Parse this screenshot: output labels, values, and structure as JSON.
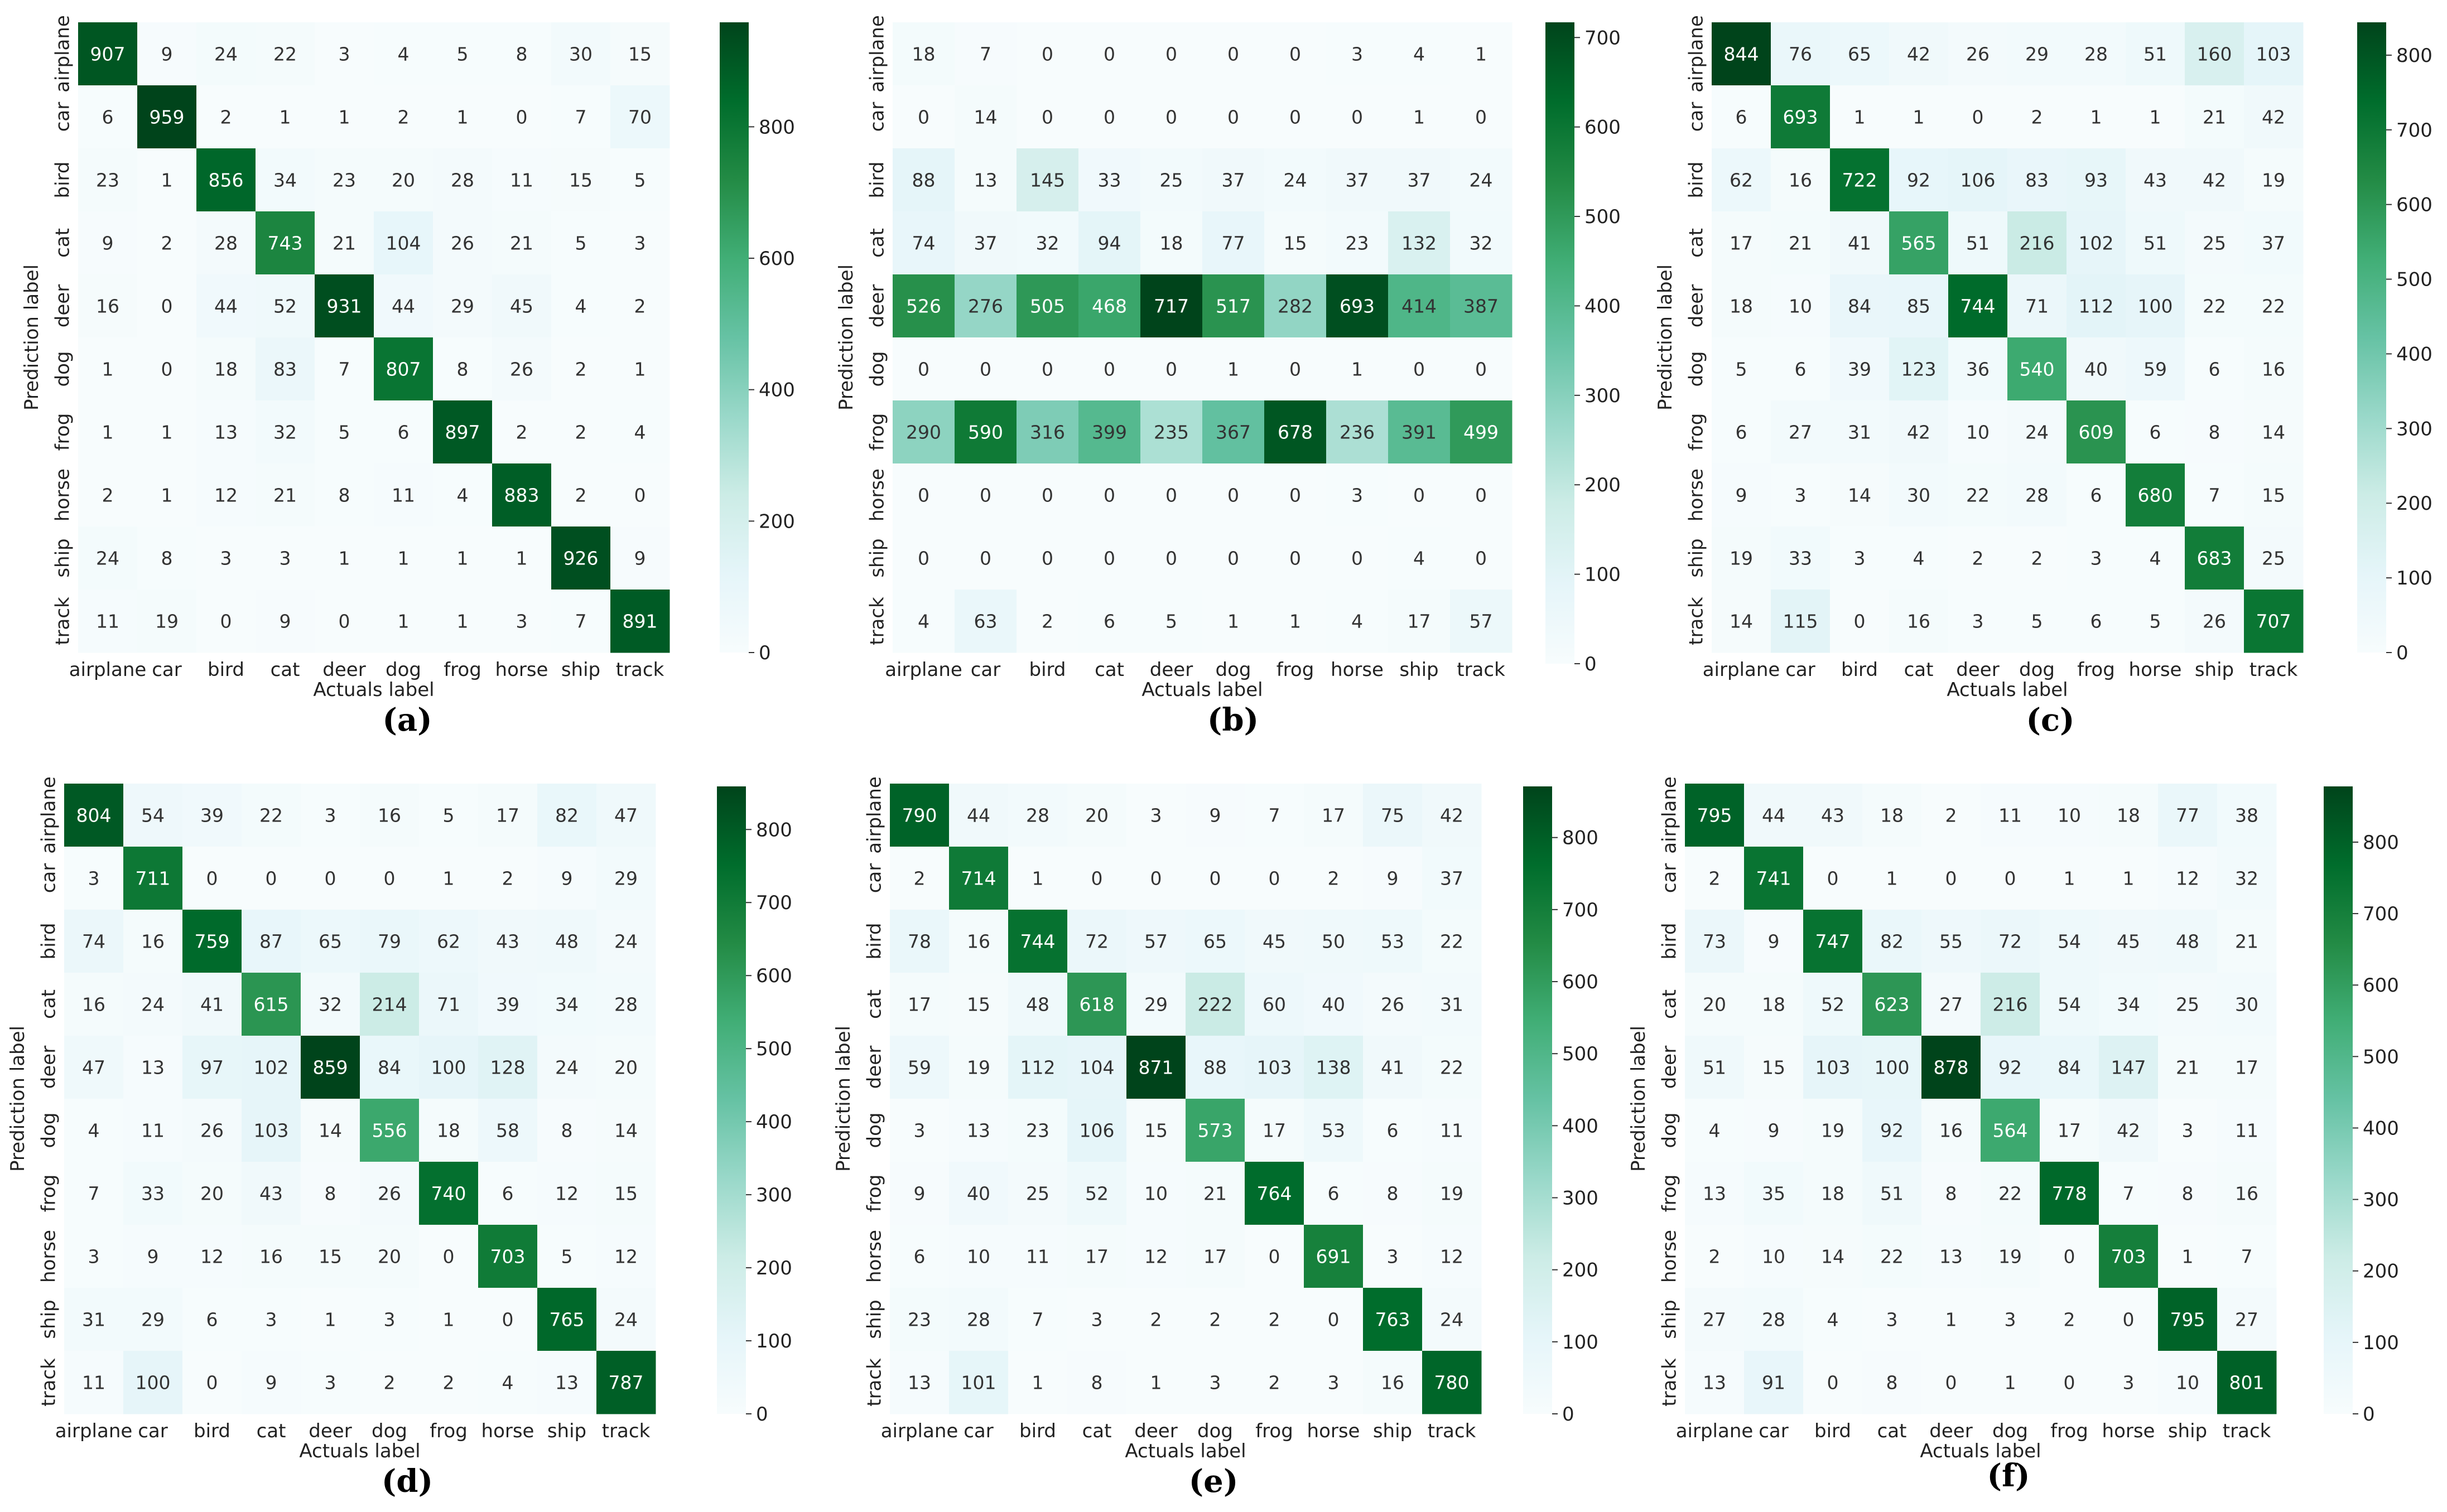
{
  "colormap": {
    "low": "#f7fcfd",
    "mid": "#66c2a4",
    "high": "#00441b",
    "stops": [
      "#f7fcfd",
      "#e5f5f9",
      "#ccece6",
      "#99d8c9",
      "#66c2a4",
      "#41ae76",
      "#238b45",
      "#006d2c",
      "#00441b"
    ]
  },
  "chart_data": [
    {
      "type": "heatmap",
      "panel_label": "(a)",
      "xlabel": "Actuals label",
      "ylabel": "Prediction label",
      "x_categories": [
        "airplane",
        "car",
        "bird",
        "cat",
        "deer",
        "dog",
        "frog",
        "horse",
        "ship",
        "track"
      ],
      "y_categories": [
        "airplane",
        "car",
        "bird",
        "cat",
        "deer",
        "dog",
        "frog",
        "horse",
        "ship",
        "track"
      ],
      "values": [
        [
          907,
          9,
          24,
          22,
          3,
          4,
          5,
          8,
          30,
          15
        ],
        [
          6,
          959,
          2,
          1,
          1,
          2,
          1,
          0,
          7,
          70
        ],
        [
          23,
          1,
          856,
          34,
          23,
          20,
          28,
          11,
          15,
          5
        ],
        [
          9,
          2,
          28,
          743,
          21,
          104,
          26,
          21,
          5,
          3
        ],
        [
          16,
          0,
          44,
          52,
          931,
          44,
          29,
          45,
          4,
          2
        ],
        [
          1,
          0,
          18,
          83,
          7,
          807,
          8,
          26,
          2,
          1
        ],
        [
          1,
          1,
          13,
          32,
          5,
          6,
          897,
          2,
          2,
          4
        ],
        [
          2,
          1,
          12,
          21,
          8,
          11,
          4,
          883,
          2,
          0
        ],
        [
          24,
          8,
          3,
          3,
          1,
          1,
          1,
          1,
          926,
          9
        ],
        [
          11,
          19,
          0,
          9,
          0,
          1,
          1,
          3,
          7,
          891
        ]
      ],
      "colorbar": {
        "ticks": [
          0,
          200,
          400,
          600,
          800
        ],
        "vmin": 0,
        "vmax": 959
      }
    },
    {
      "type": "heatmap",
      "panel_label": "(b)",
      "xlabel": "Actuals label",
      "ylabel": "Prediction label",
      "x_categories": [
        "airplane",
        "car",
        "bird",
        "cat",
        "deer",
        "dog",
        "frog",
        "horse",
        "ship",
        "track"
      ],
      "y_categories": [
        "airplane",
        "car",
        "bird",
        "cat",
        "deer",
        "dog",
        "frog",
        "horse",
        "ship",
        "track"
      ],
      "values": [
        [
          18,
          7,
          0,
          0,
          0,
          0,
          0,
          3,
          4,
          1
        ],
        [
          0,
          14,
          0,
          0,
          0,
          0,
          0,
          0,
          1,
          0
        ],
        [
          88,
          13,
          145,
          33,
          25,
          37,
          24,
          37,
          37,
          24
        ],
        [
          74,
          37,
          32,
          94,
          18,
          77,
          15,
          23,
          132,
          32
        ],
        [
          526,
          276,
          505,
          468,
          717,
          517,
          282,
          693,
          414,
          387
        ],
        [
          0,
          0,
          0,
          0,
          0,
          1,
          0,
          1,
          0,
          0
        ],
        [
          290,
          590,
          316,
          399,
          235,
          367,
          678,
          236,
          391,
          499
        ],
        [
          0,
          0,
          0,
          0,
          0,
          0,
          0,
          3,
          0,
          0
        ],
        [
          0,
          0,
          0,
          0,
          0,
          0,
          0,
          0,
          4,
          0
        ],
        [
          4,
          63,
          2,
          6,
          5,
          1,
          1,
          4,
          17,
          57
        ]
      ],
      "colorbar": {
        "ticks": [
          0,
          100,
          200,
          300,
          400,
          500,
          600,
          700
        ],
        "vmin": 0,
        "vmax": 717
      }
    },
    {
      "type": "heatmap",
      "panel_label": "(c)",
      "xlabel": "Actuals label",
      "ylabel": "Prediction label",
      "x_categories": [
        "airplane",
        "car",
        "bird",
        "cat",
        "deer",
        "dog",
        "frog",
        "horse",
        "ship",
        "track"
      ],
      "y_categories": [
        "airplane",
        "car",
        "bird",
        "cat",
        "deer",
        "dog",
        "frog",
        "horse",
        "ship",
        "track"
      ],
      "values": [
        [
          844,
          76,
          65,
          42,
          26,
          29,
          28,
          51,
          160,
          103
        ],
        [
          6,
          693,
          1,
          1,
          0,
          2,
          1,
          1,
          21,
          42
        ],
        [
          62,
          16,
          722,
          92,
          106,
          83,
          93,
          43,
          42,
          19
        ],
        [
          17,
          21,
          41,
          565,
          51,
          216,
          102,
          51,
          25,
          37
        ],
        [
          18,
          10,
          84,
          85,
          744,
          71,
          112,
          100,
          22,
          22
        ],
        [
          5,
          6,
          39,
          123,
          36,
          540,
          40,
          59,
          6,
          16
        ],
        [
          6,
          27,
          31,
          42,
          10,
          24,
          609,
          6,
          8,
          14
        ],
        [
          9,
          3,
          14,
          30,
          22,
          28,
          6,
          680,
          7,
          15
        ],
        [
          19,
          33,
          3,
          4,
          2,
          2,
          3,
          4,
          683,
          25
        ],
        [
          14,
          115,
          0,
          16,
          3,
          5,
          6,
          5,
          26,
          707
        ]
      ],
      "colorbar": {
        "ticks": [
          0,
          100,
          200,
          300,
          400,
          500,
          600,
          700,
          800
        ],
        "vmin": 0,
        "vmax": 844
      }
    },
    {
      "type": "heatmap",
      "panel_label": "(d)",
      "xlabel": "Actuals label",
      "ylabel": "Prediction label",
      "x_categories": [
        "airplane",
        "car",
        "bird",
        "cat",
        "deer",
        "dog",
        "frog",
        "horse",
        "ship",
        "track"
      ],
      "y_categories": [
        "airplane",
        "car",
        "bird",
        "cat",
        "deer",
        "dog",
        "frog",
        "horse",
        "ship",
        "track"
      ],
      "values": [
        [
          804,
          54,
          39,
          22,
          3,
          16,
          5,
          17,
          82,
          47
        ],
        [
          3,
          711,
          0,
          0,
          0,
          0,
          1,
          2,
          9,
          29
        ],
        [
          74,
          16,
          759,
          87,
          65,
          79,
          62,
          43,
          48,
          24
        ],
        [
          16,
          24,
          41,
          615,
          32,
          214,
          71,
          39,
          34,
          28
        ],
        [
          47,
          13,
          97,
          102,
          859,
          84,
          100,
          128,
          24,
          20
        ],
        [
          4,
          11,
          26,
          103,
          14,
          556,
          18,
          58,
          8,
          14
        ],
        [
          7,
          33,
          20,
          43,
          8,
          26,
          740,
          6,
          12,
          15
        ],
        [
          3,
          9,
          12,
          16,
          15,
          20,
          0,
          703,
          5,
          12
        ],
        [
          31,
          29,
          6,
          3,
          1,
          3,
          1,
          0,
          765,
          24
        ],
        [
          11,
          100,
          0,
          9,
          3,
          2,
          2,
          4,
          13,
          787
        ]
      ],
      "colorbar": {
        "ticks": [
          0,
          100,
          200,
          300,
          400,
          500,
          600,
          700,
          800
        ],
        "vmin": 0,
        "vmax": 859
      }
    },
    {
      "type": "heatmap",
      "panel_label": "(e)",
      "xlabel": "Actuals label",
      "ylabel": "Prediction label",
      "x_categories": [
        "airplane",
        "car",
        "bird",
        "cat",
        "deer",
        "dog",
        "frog",
        "horse",
        "ship",
        "track"
      ],
      "y_categories": [
        "airplane",
        "car",
        "bird",
        "cat",
        "deer",
        "dog",
        "frog",
        "horse",
        "ship",
        "track"
      ],
      "values": [
        [
          790,
          44,
          28,
          20,
          3,
          9,
          7,
          17,
          75,
          42
        ],
        [
          2,
          714,
          1,
          0,
          0,
          0,
          0,
          2,
          9,
          37
        ],
        [
          78,
          16,
          744,
          72,
          57,
          65,
          45,
          50,
          53,
          22
        ],
        [
          17,
          15,
          48,
          618,
          29,
          222,
          60,
          40,
          26,
          31
        ],
        [
          59,
          19,
          112,
          104,
          871,
          88,
          103,
          138,
          41,
          22
        ],
        [
          3,
          13,
          23,
          106,
          15,
          573,
          17,
          53,
          6,
          11
        ],
        [
          9,
          40,
          25,
          52,
          10,
          21,
          764,
          6,
          8,
          19
        ],
        [
          6,
          10,
          11,
          17,
          12,
          17,
          0,
          691,
          3,
          12
        ],
        [
          23,
          28,
          7,
          3,
          2,
          2,
          2,
          0,
          763,
          24
        ],
        [
          13,
          101,
          1,
          8,
          1,
          3,
          2,
          3,
          16,
          780
        ]
      ],
      "colorbar": {
        "ticks": [
          0,
          100,
          200,
          300,
          400,
          500,
          600,
          700,
          800
        ],
        "vmin": 0,
        "vmax": 871
      }
    },
    {
      "type": "heatmap",
      "panel_label": "(f)",
      "xlabel": "Actuals label",
      "ylabel": "Prediction label",
      "x_categories": [
        "airplane",
        "car",
        "bird",
        "cat",
        "deer",
        "dog",
        "frog",
        "horse",
        "ship",
        "track"
      ],
      "y_categories": [
        "airplane",
        "car",
        "bird",
        "cat",
        "deer",
        "dog",
        "frog",
        "horse",
        "ship",
        "track"
      ],
      "values": [
        [
          795,
          44,
          43,
          18,
          2,
          11,
          10,
          18,
          77,
          38
        ],
        [
          2,
          741,
          0,
          1,
          0,
          0,
          1,
          1,
          12,
          32
        ],
        [
          73,
          9,
          747,
          82,
          55,
          72,
          54,
          45,
          48,
          21
        ],
        [
          20,
          18,
          52,
          623,
          27,
          216,
          54,
          34,
          25,
          30
        ],
        [
          51,
          15,
          103,
          100,
          878,
          92,
          84,
          147,
          21,
          17
        ],
        [
          4,
          9,
          19,
          92,
          16,
          564,
          17,
          42,
          3,
          11
        ],
        [
          13,
          35,
          18,
          51,
          8,
          22,
          778,
          7,
          8,
          16
        ],
        [
          2,
          10,
          14,
          22,
          13,
          19,
          0,
          703,
          1,
          7
        ],
        [
          27,
          28,
          4,
          3,
          1,
          3,
          2,
          0,
          795,
          27
        ],
        [
          13,
          91,
          0,
          8,
          0,
          1,
          0,
          3,
          10,
          801
        ]
      ],
      "colorbar": {
        "ticks": [
          0,
          100,
          200,
          300,
          400,
          500,
          600,
          700,
          800
        ],
        "vmin": 0,
        "vmax": 878
      }
    }
  ]
}
